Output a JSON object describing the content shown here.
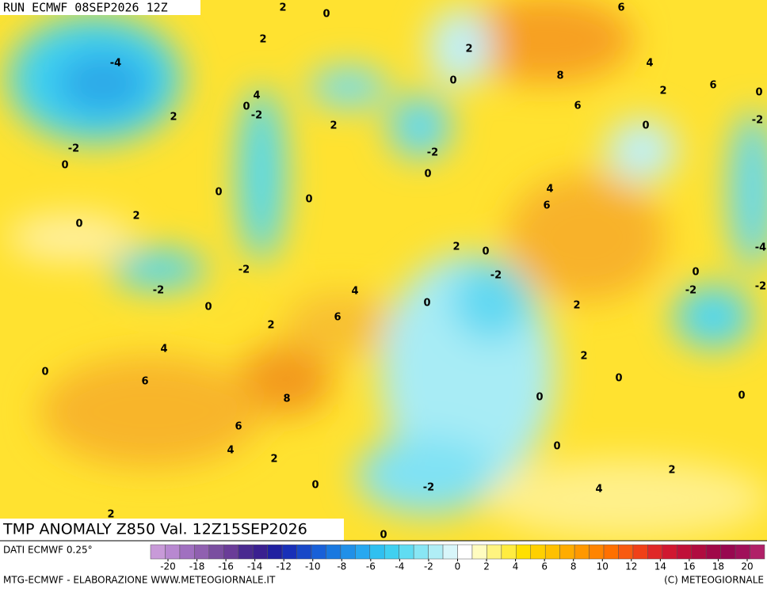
{
  "header": {
    "run": "RUN ECMWF 08SEP2026 12Z"
  },
  "map": {
    "title": "TMP ANOMALY Z850 Val. 12Z15SEP2026",
    "contour_labels": [
      2,
      0,
      6,
      2,
      -4,
      2,
      4,
      8,
      0,
      6,
      2,
      0,
      4,
      0,
      -2,
      6,
      2,
      2,
      -2,
      0,
      -2,
      -2,
      0,
      0,
      4,
      0,
      0,
      6,
      2,
      0,
      2,
      0,
      -4,
      -2,
      -2,
      0,
      -2,
      -2,
      -2,
      4,
      0,
      0,
      2,
      6,
      2,
      4,
      2,
      0,
      6,
      0,
      8,
      0,
      0,
      6,
      0,
      4,
      2,
      2,
      0,
      -2,
      4,
      2,
      0
    ]
  },
  "legend": {
    "source": "DATI ECMWF 0.25°",
    "colors": [
      "#c89ad8",
      "#b888d0",
      "#a070c0",
      "#9060b0",
      "#7a4ea0",
      "#6a3c98",
      "#4a2a90",
      "#3a2090",
      "#2020a0",
      "#1830b8",
      "#1848c8",
      "#1860d8",
      "#1878e0",
      "#2090e8",
      "#28a8f0",
      "#30c0f0",
      "#40d0f0",
      "#60dcf2",
      "#88e6f4",
      "#b0eef6",
      "#d8f6fa",
      "#ffffff",
      "#fffcc0",
      "#fff480",
      "#ffec40",
      "#ffe000",
      "#ffd000",
      "#ffc000",
      "#ffac00",
      "#ff9800",
      "#ff8400",
      "#ff7000",
      "#f85a10",
      "#f04018",
      "#e02828",
      "#d01830",
      "#c01038",
      "#b00c40",
      "#a00848",
      "#980850",
      "#a0105a",
      "#b02068"
    ],
    "ticks": [
      -20,
      -18,
      -16,
      -14,
      -12,
      -10,
      -8,
      -6,
      -4,
      -2,
      0,
      2,
      4,
      6,
      8,
      10,
      12,
      14,
      16,
      18,
      20
    ]
  },
  "footer": {
    "credit": "MTG-ECMWF - ELABORAZIONE WWW.METEOGIORNALE.IT",
    "copyright": "(C) METEOGIORNALE"
  }
}
